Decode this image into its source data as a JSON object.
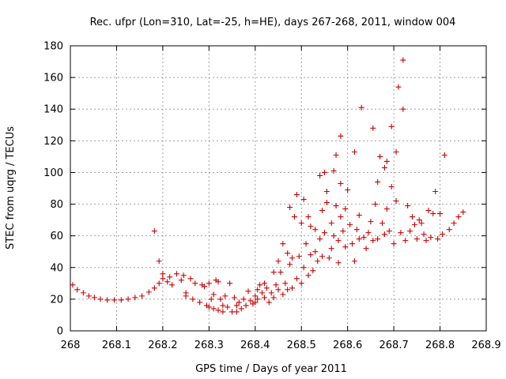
{
  "chart_data": {
    "type": "scatter",
    "title": "Rec. ufpr (Lon=310, Lat=-25, h=HE), days 267-268, 2011, window 004",
    "xlabel": "GPS time / Days of year 2011",
    "ylabel": "STEC from uqrg / TECUs",
    "xlim": [
      268,
      268.9
    ],
    "ylim": [
      0,
      180
    ],
    "xticks": [
      "268",
      "268.1",
      "268.2",
      "268.3",
      "268.4",
      "268.5",
      "268.6",
      "268.7",
      "268.8",
      "268.9"
    ],
    "yticks": [
      "0",
      "20",
      "40",
      "60",
      "80",
      "100",
      "120",
      "140",
      "160",
      "180"
    ],
    "grid": true,
    "marker": "+",
    "color": "#cc0000",
    "points": [
      [
        268.005,
        29
      ],
      [
        268.015,
        26
      ],
      [
        268.028,
        24
      ],
      [
        268.04,
        22
      ],
      [
        268.052,
        21
      ],
      [
        268.065,
        20
      ],
      [
        268.08,
        19.5
      ],
      [
        268.095,
        19.5
      ],
      [
        268.11,
        19.5
      ],
      [
        268.125,
        20
      ],
      [
        268.14,
        21
      ],
      [
        268.155,
        22
      ],
      [
        268.17,
        24.5
      ],
      [
        268.182,
        27
      ],
      [
        268.182,
        63
      ],
      [
        268.192,
        44
      ],
      [
        268.192,
        30
      ],
      [
        268.2,
        33
      ],
      [
        268.2,
        36
      ],
      [
        268.21,
        31
      ],
      [
        268.215,
        34
      ],
      [
        268.22,
        29
      ],
      [
        268.23,
        36
      ],
      [
        268.24,
        32
      ],
      [
        268.245,
        35
      ],
      [
        268.25,
        24
      ],
      [
        268.25,
        22
      ],
      [
        268.26,
        33
      ],
      [
        268.265,
        20
      ],
      [
        268.27,
        30
      ],
      [
        268.28,
        18
      ],
      [
        268.285,
        29
      ],
      [
        268.29,
        28
      ],
      [
        268.295,
        16
      ],
      [
        268.3,
        15
      ],
      [
        268.3,
        30
      ],
      [
        268.305,
        20
      ],
      [
        268.31,
        23
      ],
      [
        268.31,
        14
      ],
      [
        268.315,
        32
      ],
      [
        268.32,
        31
      ],
      [
        268.32,
        13
      ],
      [
        268.325,
        20
      ],
      [
        268.33,
        16
      ],
      [
        268.33,
        12
      ],
      [
        268.335,
        22
      ],
      [
        268.34,
        15
      ],
      [
        268.345,
        30
      ],
      [
        268.35,
        12
      ],
      [
        268.355,
        21
      ],
      [
        268.36,
        16
      ],
      [
        268.36,
        12
      ],
      [
        268.365,
        18
      ],
      [
        268.37,
        14
      ],
      [
        268.375,
        20
      ],
      [
        268.38,
        16
      ],
      [
        268.385,
        25
      ],
      [
        268.39,
        19
      ],
      [
        268.395,
        17
      ],
      [
        268.4,
        18
      ],
      [
        268.4,
        22
      ],
      [
        268.405,
        26
      ],
      [
        268.405,
        20
      ],
      [
        268.41,
        29
      ],
      [
        268.415,
        24
      ],
      [
        268.42,
        30
      ],
      [
        268.42,
        21
      ],
      [
        268.425,
        27
      ],
      [
        268.43,
        18
      ],
      [
        268.435,
        24
      ],
      [
        268.44,
        37
      ],
      [
        268.44,
        21
      ],
      [
        268.445,
        29
      ],
      [
        268.45,
        44
      ],
      [
        268.45,
        26
      ],
      [
        268.455,
        37
      ],
      [
        268.46,
        23
      ],
      [
        268.46,
        55
      ],
      [
        268.465,
        30
      ],
      [
        268.47,
        49
      ],
      [
        268.47,
        26
      ],
      [
        268.475,
        78
      ],
      [
        268.475,
        42
      ],
      [
        268.48,
        27
      ],
      [
        268.48,
        46
      ],
      [
        268.485,
        72
      ],
      [
        268.49,
        86
      ],
      [
        268.49,
        33
      ],
      [
        268.495,
        47
      ],
      [
        268.5,
        30
      ],
      [
        268.5,
        68
      ],
      [
        268.505,
        83
      ],
      [
        268.505,
        40
      ],
      [
        268.51,
        55
      ],
      [
        268.515,
        35
      ],
      [
        268.515,
        72
      ],
      [
        268.52,
        48
      ],
      [
        268.52,
        66
      ],
      [
        268.525,
        38
      ],
      [
        268.53,
        64
      ],
      [
        268.53,
        50
      ],
      [
        268.535,
        44
      ],
      [
        268.54,
        98
      ],
      [
        268.54,
        58
      ],
      [
        268.545,
        76
      ],
      [
        268.545,
        47
      ],
      [
        268.55,
        100
      ],
      [
        268.55,
        62
      ],
      [
        268.555,
        81
      ],
      [
        268.555,
        88
      ],
      [
        268.56,
        46
      ],
      [
        268.565,
        68
      ],
      [
        268.565,
        52
      ],
      [
        268.57,
        101
      ],
      [
        268.57,
        60
      ],
      [
        268.575,
        111
      ],
      [
        268.575,
        79
      ],
      [
        268.58,
        43
      ],
      [
        268.58,
        57
      ],
      [
        268.585,
        123
      ],
      [
        268.585,
        72
      ],
      [
        268.585,
        93
      ],
      [
        268.59,
        63
      ],
      [
        268.595,
        53
      ],
      [
        268.595,
        77
      ],
      [
        268.6,
        89
      ],
      [
        268.605,
        67
      ],
      [
        268.61,
        55
      ],
      [
        268.615,
        113
      ],
      [
        268.615,
        44
      ],
      [
        268.62,
        64
      ],
      [
        268.625,
        73
      ],
      [
        268.625,
        58
      ],
      [
        268.63,
        141
      ],
      [
        268.635,
        59
      ],
      [
        268.64,
        52
      ],
      [
        268.645,
        62
      ],
      [
        268.65,
        69
      ],
      [
        268.655,
        128
      ],
      [
        268.655,
        57
      ],
      [
        268.66,
        80
      ],
      [
        268.665,
        58
      ],
      [
        268.665,
        94
      ],
      [
        268.67,
        110
      ],
      [
        268.675,
        68
      ],
      [
        268.68,
        61
      ],
      [
        268.68,
        103
      ],
      [
        268.685,
        107
      ],
      [
        268.685,
        77
      ],
      [
        268.69,
        63
      ],
      [
        268.695,
        129
      ],
      [
        268.695,
        91
      ],
      [
        268.7,
        55
      ],
      [
        268.705,
        82
      ],
      [
        268.705,
        113
      ],
      [
        268.71,
        154
      ],
      [
        268.715,
        62
      ],
      [
        268.72,
        171
      ],
      [
        268.72,
        140
      ],
      [
        268.725,
        57
      ],
      [
        268.73,
        79
      ],
      [
        268.735,
        63
      ],
      [
        268.74,
        72
      ],
      [
        268.745,
        67
      ],
      [
        268.75,
        58
      ],
      [
        268.755,
        70
      ],
      [
        268.76,
        68
      ],
      [
        268.765,
        61
      ],
      [
        268.77,
        57
      ],
      [
        268.775,
        76
      ],
      [
        268.78,
        59
      ],
      [
        268.785,
        74
      ],
      [
        268.79,
        88
      ],
      [
        268.795,
        58
      ],
      [
        268.8,
        74
      ],
      [
        268.805,
        61
      ],
      [
        268.81,
        111
      ],
      [
        268.82,
        64
      ],
      [
        268.83,
        68
      ],
      [
        268.84,
        72
      ],
      [
        268.85,
        75
      ]
    ]
  }
}
